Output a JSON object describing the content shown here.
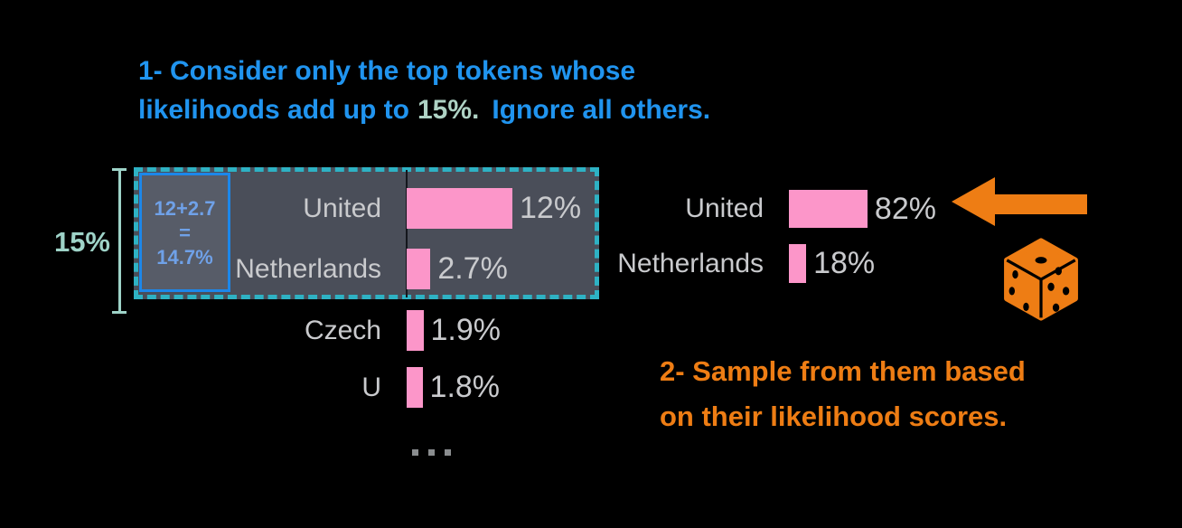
{
  "step1": {
    "line1": "1- Consider only the top tokens whose",
    "line2_pre": "likelihoods add up to",
    "line2_highlight": "15%.",
    "line2_post": "Ignore all others."
  },
  "threshold": {
    "label": "15%",
    "sum_line1": "12+2.7",
    "sum_line2": "=",
    "sum_line3": "14.7%"
  },
  "step2": {
    "line1": "2- Sample from them based",
    "line2": "on their likelihood scores."
  },
  "ellipsis_dots": 3,
  "chart_data": [
    {
      "name": "token-likelihoods",
      "type": "bar",
      "orientation": "horizontal",
      "categories": [
        "United",
        "Netherlands",
        "Czech",
        "U"
      ],
      "values": [
        12,
        2.7,
        1.9,
        1.8
      ],
      "value_labels": [
        "12%",
        "2.7%",
        "1.9%",
        "1.8%"
      ],
      "selected_categories": [
        "United",
        "Netherlands"
      ],
      "selection_sum": "14.7%",
      "threshold": "15%"
    },
    {
      "name": "renormalized-sampling",
      "type": "bar",
      "orientation": "horizontal",
      "categories": [
        "United",
        "Netherlands"
      ],
      "values": [
        82,
        18
      ],
      "value_labels": [
        "82%",
        "18%"
      ]
    }
  ],
  "icons": {
    "arrow": "left-arrow-icon",
    "dice": "dice-icon"
  },
  "colors": {
    "background": "#000000",
    "step1_text": "#2094ef",
    "step1_highlight": "#aed2c4",
    "step2_text": "#ee7d14",
    "bar_fill": "#fc96c9",
    "label_text": "#c9cacd",
    "selection_border": "#2eb2c4",
    "selection_fill": "#4a4e59",
    "sum_box_border": "#1c87ea",
    "sum_box_text": "#6fa1e8",
    "threshold_text": "#9ed3c8",
    "axis_line": "#14161c",
    "ellipsis": "#8a8d8f",
    "arrow_and_dice": "#ee7d14"
  }
}
